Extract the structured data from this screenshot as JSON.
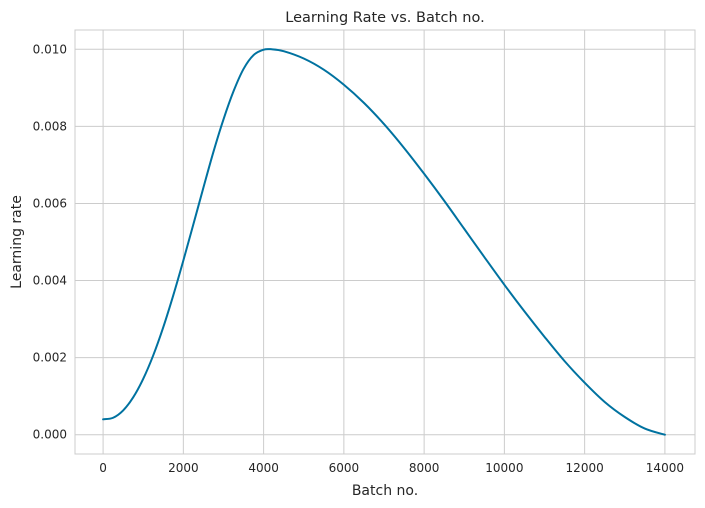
{
  "chart_data": {
    "type": "line",
    "title": "Learning Rate vs. Batch no.",
    "xlabel": "Batch no.",
    "ylabel": "Learning rate",
    "xlim": [
      -700,
      14750
    ],
    "ylim": [
      -0.0005,
      0.0105
    ],
    "x_ticks": [
      0,
      2000,
      4000,
      6000,
      8000,
      10000,
      12000,
      14000
    ],
    "x_tick_labels": [
      "0",
      "2000",
      "4000",
      "6000",
      "8000",
      "10000",
      "12000",
      "14000"
    ],
    "y_ticks": [
      0.0,
      0.002,
      0.004,
      0.006,
      0.008,
      0.01
    ],
    "y_tick_labels": [
      "0.000",
      "0.002",
      "0.004",
      "0.006",
      "0.008",
      "0.010"
    ],
    "grid": true,
    "colors": {
      "line": "#0072a0",
      "grid": "#cccccc",
      "spine": "#cccccc",
      "text": "#262626"
    },
    "series": [
      {
        "x": [
          0,
          250,
          500,
          750,
          1000,
          1250,
          1500,
          1750,
          2000,
          2250,
          2500,
          2750,
          3000,
          3250,
          3500,
          3750,
          4000,
          4200,
          4500,
          5000,
          5500,
          6000,
          6500,
          7000,
          7500,
          8000,
          8500,
          9000,
          9500,
          10000,
          10500,
          11000,
          11500,
          12000,
          12500,
          13000,
          13500,
          14000
        ],
        "y": [
          0.0004,
          0.00044,
          0.00063,
          0.00097,
          0.00145,
          0.00206,
          0.00279,
          0.00362,
          0.00452,
          0.00546,
          0.00641,
          0.00734,
          0.00818,
          0.00891,
          0.00949,
          0.00985,
          0.00999,
          0.01,
          0.00995,
          0.00976,
          0.00947,
          0.00908,
          0.00861,
          0.00806,
          0.00744,
          0.00677,
          0.00607,
          0.00534,
          0.00461,
          0.00389,
          0.0032,
          0.00254,
          0.00191,
          0.00135,
          0.00085,
          0.00046,
          0.00016,
          0.0
        ]
      }
    ]
  }
}
